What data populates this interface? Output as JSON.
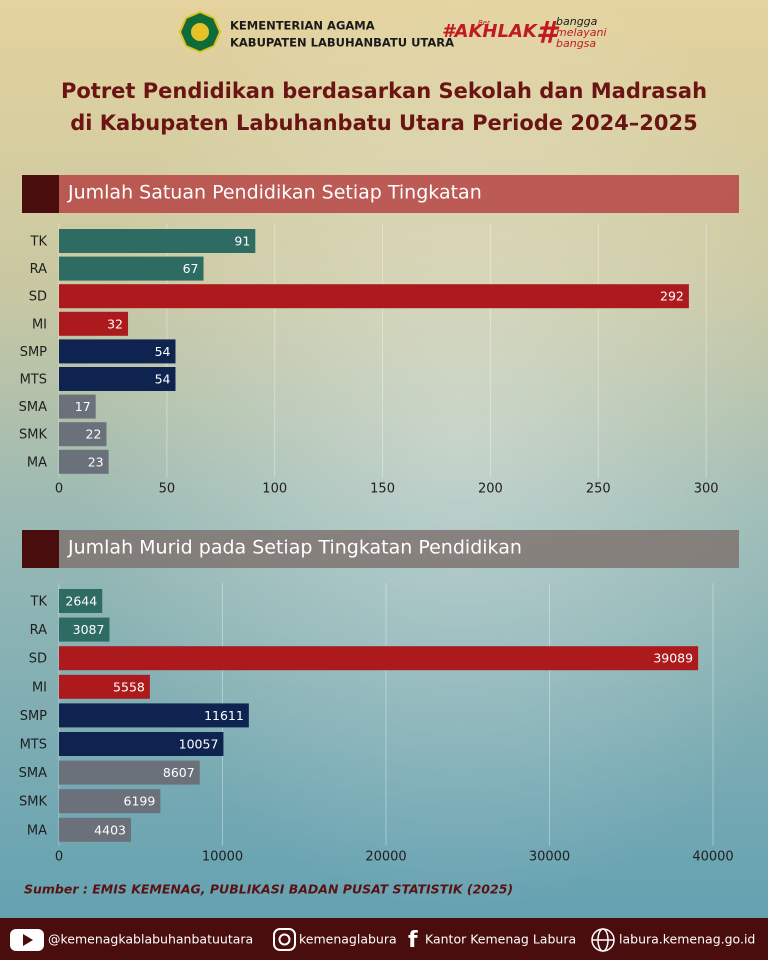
{
  "header": {
    "org_line1": "KEMENTERIAN AGAMA",
    "org_line2": "KABUPATEN LABUHANBATU UTARA",
    "tag1_small": "Ber",
    "tag1": "#AKHLAK",
    "tag2_mark": "#",
    "tag2_lines": [
      "bangga",
      "melayani",
      "bangsa"
    ]
  },
  "title": [
    "Potret Pendidikan berdasarkan Sekolah dan Madrasah",
    "di Kabupaten Labuhanbatu Utara Periode 2024–2025"
  ],
  "chart_data": [
    {
      "type": "bar",
      "orientation": "horizontal",
      "title": "Jumlah Satuan Pendidikan Setiap Tingkatan",
      "categories": [
        "TK",
        "RA",
        "SD",
        "MI",
        "SMP",
        "MTS",
        "SMA",
        "SMK",
        "MA"
      ],
      "values": [
        91,
        67,
        292,
        32,
        54,
        54,
        17,
        22,
        23
      ],
      "colors": [
        "#2d6b63",
        "#2d6b63",
        "#ad1a1d",
        "#ad1a1d",
        "#0f2350",
        "#0f2350",
        "#6a717b",
        "#6a717b",
        "#6a717b"
      ],
      "xlim": [
        0,
        315
      ],
      "xticks": [
        0,
        50,
        100,
        150,
        200,
        250,
        300
      ],
      "grid": true
    },
    {
      "type": "bar",
      "orientation": "horizontal",
      "title": "Jumlah Murid pada Setiap Tingkatan Pendidikan",
      "categories": [
        "TK",
        "RA",
        "SD",
        "MI",
        "SMP",
        "MTS",
        "SMA",
        "SMK",
        "MA"
      ],
      "values": [
        2644,
        3087,
        39089,
        5558,
        11611,
        10057,
        8607,
        6199,
        4403
      ],
      "colors": [
        "#2d6b63",
        "#2d6b63",
        "#ad1a1d",
        "#ad1a1d",
        "#0f2350",
        "#0f2350",
        "#6a717b",
        "#6a717b",
        "#6a717b"
      ],
      "xlim": [
        0,
        42000
      ],
      "xticks": [
        0,
        10000,
        20000,
        30000,
        40000
      ],
      "grid": true
    }
  ],
  "source": "Sumber : EMIS KEMENAG, PUBLIKASI BADAN PUSAT STATISTIK (2025)",
  "footer": {
    "youtube": "@kemenagkablabuhanbatuutara",
    "instagram": "kemenaglabura",
    "facebook": "Kantor Kemenag Labura",
    "website": "labura.kemenag.go.id"
  }
}
